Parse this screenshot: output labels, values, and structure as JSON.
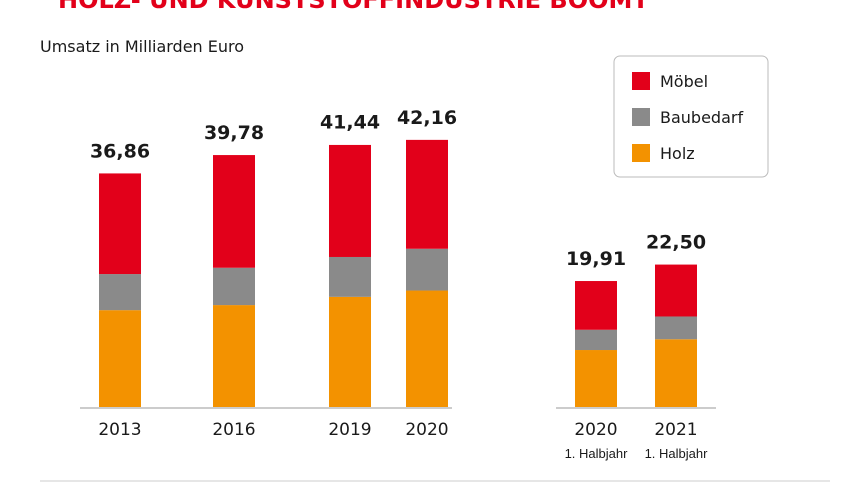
{
  "chart_data": {
    "type": "stacked-bar",
    "title": "HOLZ- UND KUNSTSTOFFINDUSTRIE BOOMT",
    "subtitle": "Umsatz in Milliarden Euro",
    "categories": [
      "2013",
      "2016",
      "2019",
      "2020",
      "2020",
      "2021"
    ],
    "category_sublabels": [
      null,
      null,
      null,
      null,
      "1. Halbjahr",
      "1. Halbjahr"
    ],
    "series": [
      {
        "name": "Holz",
        "color": "#f39200",
        "values": [
          15.3,
          16.1,
          17.4,
          18.4,
          9.0,
          10.7
        ]
      },
      {
        "name": "Baubedarf",
        "color": "#8a8a8a",
        "values": [
          5.7,
          5.9,
          6.3,
          6.6,
          3.2,
          3.6
        ]
      },
      {
        "name": "Möbel",
        "color": "#e2001a",
        "values": [
          15.9,
          17.8,
          17.7,
          17.2,
          7.7,
          8.2
        ]
      }
    ],
    "totals": [
      36.86,
      39.78,
      41.44,
      42.16,
      19.91,
      22.5
    ],
    "value_labels": [
      "36,86",
      "39,78",
      "41,44",
      "42,16",
      "19,91",
      "22,50"
    ]
  }
}
